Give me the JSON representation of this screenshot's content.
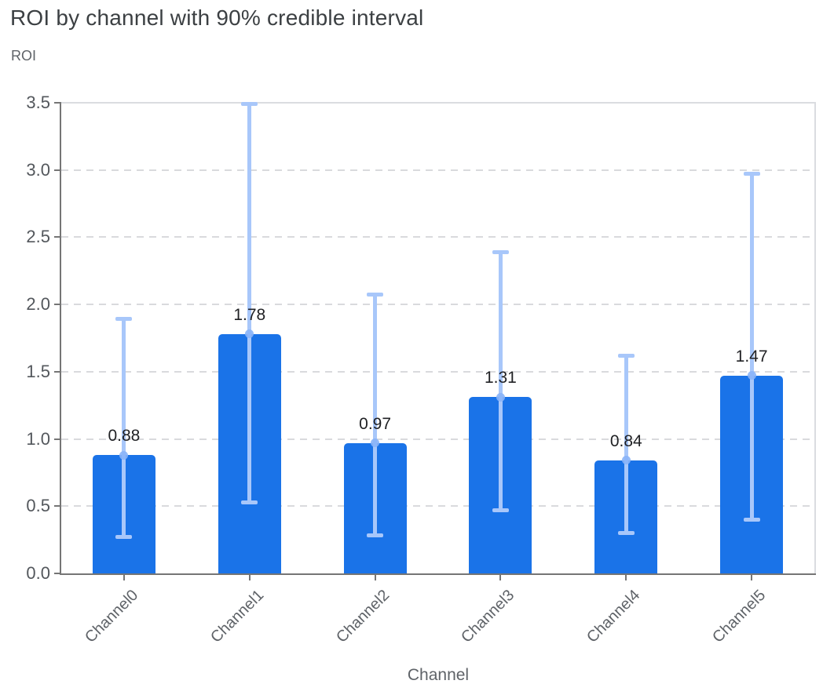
{
  "chart_title": "ROI by channel with 90% credible interval",
  "y_axis_title": "ROI",
  "x_axis_title": "Channel",
  "colors": {
    "bar": "#1a73e8",
    "error_bar": "#a8c7fa",
    "mean_dot": "#8ab4f8",
    "gridline": "#dadce0",
    "plot_border": "#dadce0",
    "axis_line": "#757575",
    "tick_label_text": "#53575c",
    "axis_title_text": "#5f6368",
    "chart_title_text": "#3c4043",
    "value_label_text": "#202124",
    "background": "#ffffff"
  },
  "chart_data": {
    "type": "bar",
    "title": "ROI by channel with 90% credible interval",
    "xlabel": "Channel",
    "ylabel": "ROI",
    "categories": [
      "Channel0",
      "Channel1",
      "Channel2",
      "Channel3",
      "Channel4",
      "Channel5"
    ],
    "values": [
      0.88,
      1.78,
      0.97,
      1.31,
      0.84,
      1.47
    ],
    "value_labels": [
      "0.88",
      "1.78",
      "0.97",
      "1.31",
      "0.84",
      "1.47"
    ],
    "error_bars": {
      "low": [
        0.27,
        0.53,
        0.28,
        0.47,
        0.3,
        0.4
      ],
      "high": [
        1.89,
        3.49,
        2.07,
        2.39,
        1.62,
        2.97
      ]
    },
    "ylim": [
      0,
      3.5
    ],
    "yticks": [
      0,
      0.5,
      1,
      1.5,
      2,
      2.5,
      3,
      3.5
    ],
    "ytick_labels": [
      "0.0",
      "0.5",
      "1.0",
      "1.5",
      "2.0",
      "2.5",
      "3.0",
      "3.5"
    ],
    "grid": "horizontal-dashed",
    "legend": "none",
    "x_tick_rotation": -45
  }
}
